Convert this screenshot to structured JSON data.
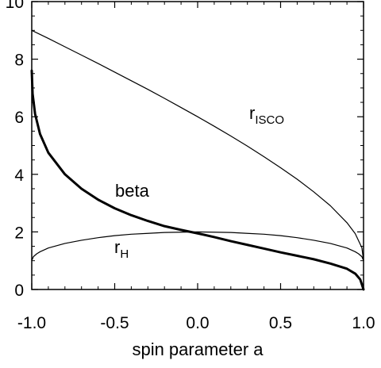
{
  "chart_data": {
    "type": "line",
    "title": "",
    "xlabel": "spin parameter a",
    "ylabel": "",
    "xlim": [
      -1.0,
      1.0
    ],
    "ylim": [
      0,
      10
    ],
    "grid": false,
    "x_ticks": [
      "-1.0",
      "-0.5",
      "0.0",
      "0.5",
      "1.0"
    ],
    "y_ticks": [
      "0",
      "2",
      "4",
      "6",
      "8",
      "10"
    ],
    "series": [
      {
        "name": "r_ISCO",
        "label_main": "r",
        "label_sub": "ISCO",
        "color": "#000000",
        "weight": "thin",
        "x": [
          -1.0,
          -0.9,
          -0.8,
          -0.7,
          -0.6,
          -0.5,
          -0.4,
          -0.3,
          -0.2,
          -0.1,
          0.0,
          0.1,
          0.2,
          0.3,
          0.4,
          0.5,
          0.6,
          0.7,
          0.8,
          0.9,
          0.95,
          0.99,
          1.0
        ],
        "y": [
          9.0,
          8.72,
          8.43,
          8.14,
          7.85,
          7.55,
          7.25,
          6.95,
          6.64,
          6.32,
          6.0,
          5.67,
          5.33,
          4.98,
          4.61,
          4.23,
          3.83,
          3.39,
          2.91,
          2.32,
          1.94,
          1.45,
          1.0
        ]
      },
      {
        "name": "beta",
        "label_main": "beta",
        "color": "#000000",
        "weight": "thick",
        "x": [
          -1.0,
          -0.995,
          -0.98,
          -0.95,
          -0.9,
          -0.8,
          -0.7,
          -0.6,
          -0.5,
          -0.4,
          -0.3,
          -0.2,
          -0.1,
          0.0,
          0.1,
          0.2,
          0.3,
          0.4,
          0.5,
          0.6,
          0.7,
          0.8,
          0.9,
          0.95,
          0.98,
          1.0
        ],
        "y": [
          7.6,
          6.8,
          6.1,
          5.4,
          4.75,
          4.0,
          3.5,
          3.12,
          2.82,
          2.58,
          2.38,
          2.2,
          2.07,
          1.95,
          1.82,
          1.68,
          1.55,
          1.42,
          1.29,
          1.17,
          1.05,
          0.9,
          0.72,
          0.55,
          0.35,
          0.0
        ]
      },
      {
        "name": "r_H",
        "label_main": "r",
        "label_sub": "H",
        "color": "#000000",
        "weight": "thin",
        "x": [
          -1.0,
          -0.99,
          -0.97,
          -0.95,
          -0.9,
          -0.8,
          -0.7,
          -0.6,
          -0.5,
          -0.4,
          -0.3,
          -0.2,
          -0.1,
          0.0,
          0.1,
          0.2,
          0.3,
          0.4,
          0.5,
          0.6,
          0.7,
          0.8,
          0.9,
          0.95,
          0.97,
          0.99,
          1.0
        ],
        "y": [
          1.0,
          1.14,
          1.24,
          1.31,
          1.44,
          1.6,
          1.71,
          1.8,
          1.87,
          1.92,
          1.95,
          1.98,
          1.99,
          2.0,
          1.99,
          1.98,
          1.95,
          1.92,
          1.87,
          1.8,
          1.71,
          1.6,
          1.44,
          1.31,
          1.24,
          1.14,
          1.0
        ]
      }
    ]
  }
}
